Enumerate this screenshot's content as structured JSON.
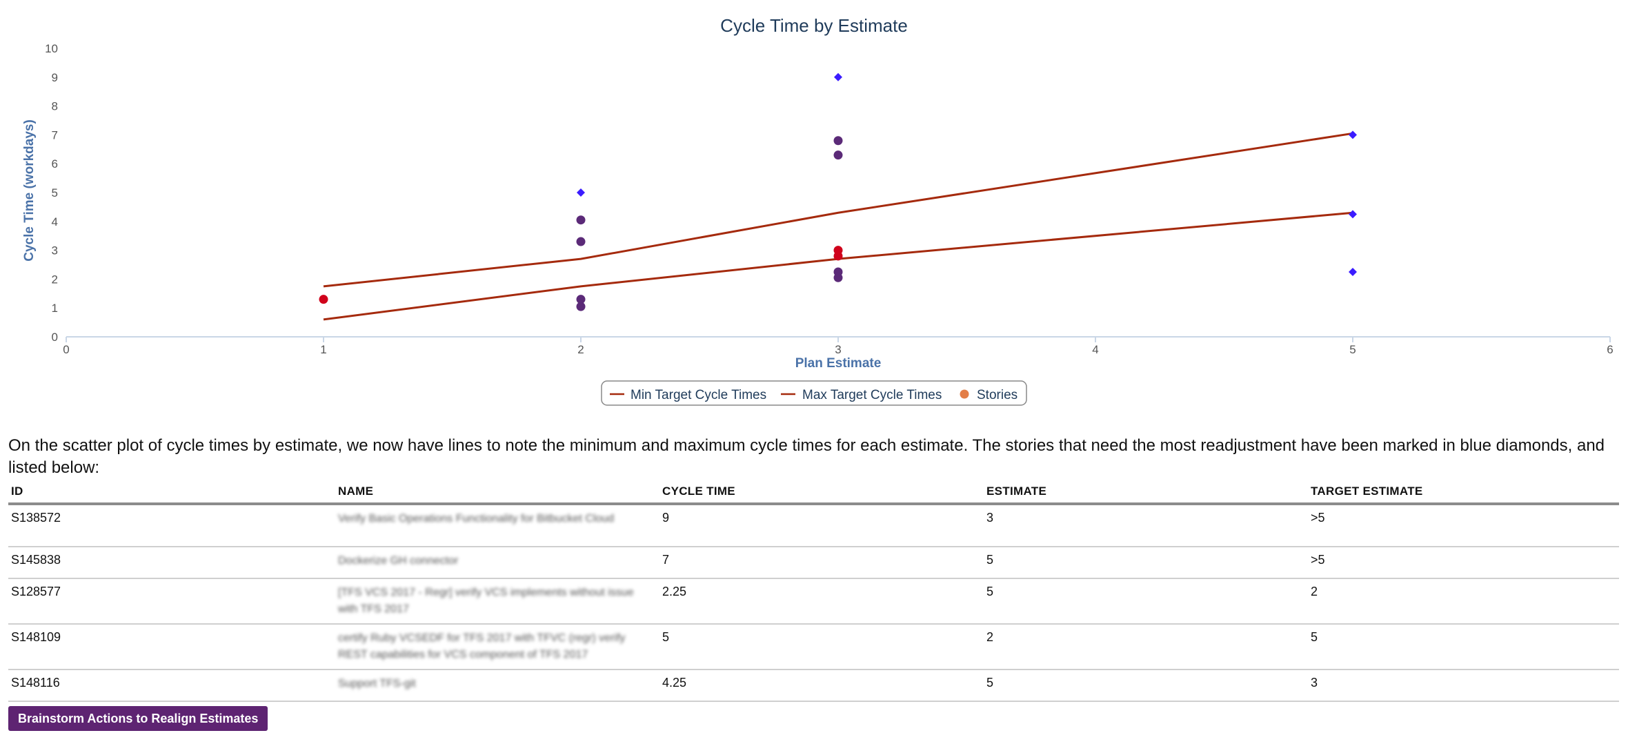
{
  "chart_data": {
    "type": "scatter",
    "title": "Cycle Time by Estimate",
    "xlabel": "Plan Estimate",
    "ylabel": "Cycle Time (workdays)",
    "xlim": [
      0,
      6
    ],
    "ylim": [
      0,
      10
    ],
    "x_ticks": [
      "0",
      "1",
      "2",
      "3",
      "4",
      "5",
      "6"
    ],
    "y_ticks": [
      "0",
      "1",
      "2",
      "3",
      "4",
      "5",
      "6",
      "7",
      "8",
      "9",
      "10"
    ],
    "grid": false,
    "legend_position": "bottom-center",
    "legend": [
      "Min Target Cycle Times",
      "Max Target Cycle Times",
      "Stories"
    ],
    "lines": [
      {
        "name": "Min Target Cycle Times",
        "color": "#a52a0d",
        "points": [
          [
            1,
            0.6
          ],
          [
            2,
            1.75
          ],
          [
            3,
            2.7
          ],
          [
            5,
            4.3
          ]
        ]
      },
      {
        "name": "Max Target Cycle Times",
        "color": "#a52a0d",
        "points": [
          [
            1,
            1.75
          ],
          [
            2,
            2.7
          ],
          [
            3,
            4.3
          ],
          [
            5,
            7.05
          ]
        ]
      }
    ],
    "stories": {
      "name": "Stories",
      "legend_color": "#e37e47",
      "points": [
        {
          "x": 1,
          "y": 1.3,
          "color": "#d0021b",
          "shape": "circle"
        },
        {
          "x": 2,
          "y": 1.05,
          "color": "#5b2a78",
          "shape": "circle"
        },
        {
          "x": 2,
          "y": 1.3,
          "color": "#5b2a78",
          "shape": "circle"
        },
        {
          "x": 2,
          "y": 3.3,
          "color": "#5b2a78",
          "shape": "circle"
        },
        {
          "x": 2,
          "y": 4.05,
          "color": "#5b2a78",
          "shape": "circle"
        },
        {
          "x": 2,
          "y": 5.0,
          "color": "#3b1cff",
          "shape": "diamond"
        },
        {
          "x": 3,
          "y": 2.05,
          "color": "#5b2a78",
          "shape": "circle"
        },
        {
          "x": 3,
          "y": 2.25,
          "color": "#5b2a78",
          "shape": "circle"
        },
        {
          "x": 3,
          "y": 2.8,
          "color": "#d0021b",
          "shape": "circle"
        },
        {
          "x": 3,
          "y": 3.0,
          "color": "#d0021b",
          "shape": "circle"
        },
        {
          "x": 3,
          "y": 6.3,
          "color": "#5b2a78",
          "shape": "circle"
        },
        {
          "x": 3,
          "y": 6.8,
          "color": "#5b2a78",
          "shape": "circle"
        },
        {
          "x": 3,
          "y": 9.0,
          "color": "#3b1cff",
          "shape": "diamond"
        },
        {
          "x": 5,
          "y": 2.25,
          "color": "#3b1cff",
          "shape": "diamond"
        },
        {
          "x": 5,
          "y": 4.25,
          "color": "#3b1cff",
          "shape": "diamond"
        },
        {
          "x": 5,
          "y": 7.0,
          "color": "#3b1cff",
          "shape": "diamond"
        }
      ]
    },
    "colors": {
      "title": "#1f3b5a",
      "axis_label": "#4a72a8",
      "axis_line": "#c9d6e6",
      "tick": "#555555"
    }
  },
  "paragraph": "On the scatter plot of cycle times by estimate, we now have lines to note the minimum and maximum cycle times for each estimate. The stories that need the most readjustment have been marked in blue diamonds, and listed below:",
  "table": {
    "headers": {
      "id": "ID",
      "name": "NAME",
      "cycle": "CYCLE TIME",
      "estimate": "ESTIMATE",
      "target": "TARGET ESTIMATE"
    },
    "rows": [
      {
        "id": "S138572",
        "name": "Verify Basic Operations Functionality for Bitbucket Cloud",
        "cycle": "9",
        "estimate": "3",
        "target": ">5"
      },
      {
        "id": "S145838",
        "name": "Dockerize GH connector",
        "cycle": "7",
        "estimate": "5",
        "target": ">5"
      },
      {
        "id": "S128577",
        "name": "[TFS VCS 2017 - Regr] verify VCS implements without issue with TFS 2017",
        "cycle": "2.25",
        "estimate": "5",
        "target": "2"
      },
      {
        "id": "S148109",
        "name": "certify Ruby VCSEDF for TFS 2017 with TFVC (regr) verify REST capabilities for VCS component of TFS 2017",
        "cycle": "5",
        "estimate": "2",
        "target": "5"
      },
      {
        "id": "S148116",
        "name": "Support TFS-git",
        "cycle": "4.25",
        "estimate": "5",
        "target": "3"
      }
    ]
  },
  "button": {
    "label": "Brainstorm Actions to Realign Estimates",
    "bg": "#5e2472"
  }
}
